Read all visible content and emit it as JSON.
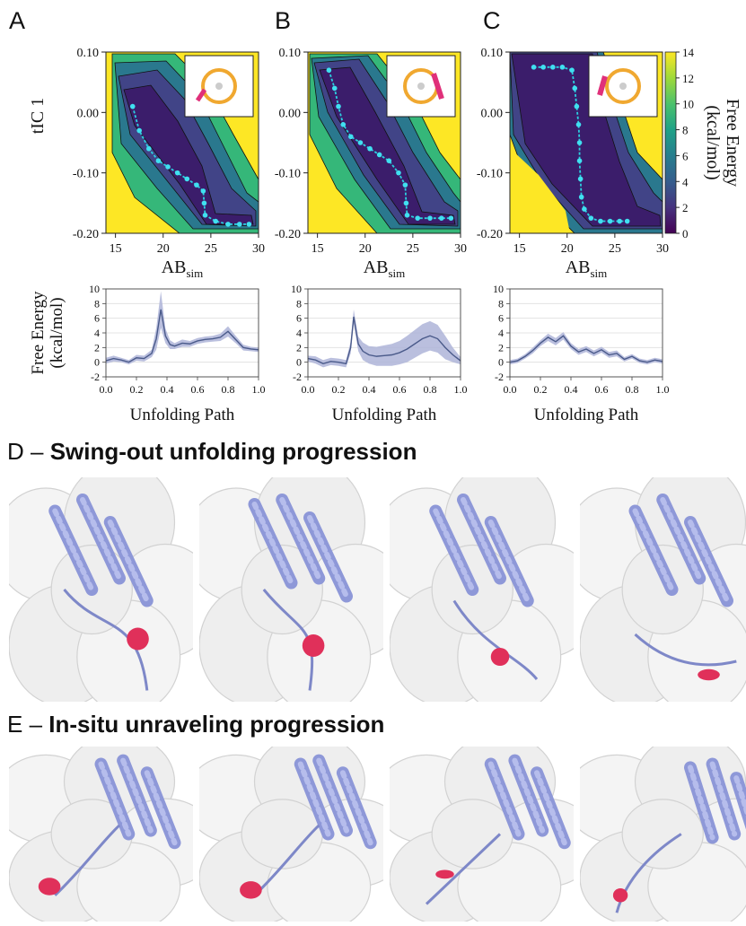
{
  "figure": {
    "panel_labels": [
      "A",
      "B",
      "C",
      "D",
      "E"
    ],
    "colorbar": {
      "label_line1": "Free Energy",
      "label_line2": "(kcal/mol)",
      "ticks": [
        "0",
        "2",
        "4",
        "6",
        "8",
        "10",
        "12",
        "14"
      ]
    },
    "section_d": {
      "title": "Swing-out unfolding progression"
    },
    "section_e": {
      "title": "In-situ unraveling progression"
    },
    "dash": "–"
  },
  "chart_data": [
    {
      "type": "heatmap",
      "panel": "A",
      "xlabel_main": "AB",
      "xlabel_sub": "sim",
      "ylabel": "tIC 1",
      "xlim": [
        14,
        30
      ],
      "ylim": [
        -0.2,
        0.1
      ],
      "xticks": [
        "15",
        "20",
        "25",
        "30"
      ],
      "yticks": [
        "0.10",
        "0.00",
        "-0.10",
        "-0.20"
      ],
      "path": [
        [
          16.8,
          0.01
        ],
        [
          17.5,
          -0.03
        ],
        [
          18.5,
          -0.06
        ],
        [
          19.5,
          -0.08
        ],
        [
          20.5,
          -0.09
        ],
        [
          21.5,
          -0.1
        ],
        [
          22.5,
          -0.11
        ],
        [
          23.5,
          -0.12
        ],
        [
          24.2,
          -0.13
        ],
        [
          24.3,
          -0.15
        ],
        [
          24.4,
          -0.17
        ],
        [
          25.5,
          -0.18
        ],
        [
          26.8,
          -0.185
        ],
        [
          28,
          -0.185
        ],
        [
          29,
          -0.185
        ]
      ],
      "zlim": [
        0,
        14
      ]
    },
    {
      "type": "heatmap",
      "panel": "B",
      "xlabel_main": "AB",
      "xlabel_sub": "sim",
      "ylabel": "",
      "xlim": [
        14,
        30
      ],
      "ylim": [
        -0.2,
        0.1
      ],
      "xticks": [
        "15",
        "20",
        "25",
        "30"
      ],
      "yticks": [
        "0.10",
        "0.00",
        "-0.10",
        "-0.20"
      ],
      "path": [
        [
          16.2,
          0.07
        ],
        [
          16.8,
          0.04
        ],
        [
          17.2,
          0.01
        ],
        [
          17.7,
          -0.02
        ],
        [
          18.5,
          -0.04
        ],
        [
          19.5,
          -0.05
        ],
        [
          20.5,
          -0.06
        ],
        [
          21.5,
          -0.07
        ],
        [
          22.5,
          -0.08
        ],
        [
          23.5,
          -0.1
        ],
        [
          24.2,
          -0.12
        ],
        [
          24.3,
          -0.15
        ],
        [
          24.4,
          -0.17
        ],
        [
          25.5,
          -0.175
        ],
        [
          26.8,
          -0.175
        ],
        [
          28,
          -0.175
        ],
        [
          29,
          -0.175
        ]
      ],
      "zlim": [
        0,
        14
      ]
    },
    {
      "type": "heatmap",
      "panel": "C",
      "xlabel_main": "AB",
      "xlabel_sub": "sim",
      "ylabel": "",
      "xlim": [
        14,
        30
      ],
      "ylim": [
        -0.2,
        0.1
      ],
      "xticks": [
        "15",
        "20",
        "25",
        "30"
      ],
      "yticks": [
        "0.10",
        "0.00",
        "-0.10",
        "-0.20"
      ],
      "path": [
        [
          16.5,
          0.075
        ],
        [
          17.5,
          0.075
        ],
        [
          18.5,
          0.075
        ],
        [
          19.5,
          0.075
        ],
        [
          20.5,
          0.07
        ],
        [
          20.8,
          0.04
        ],
        [
          21,
          0.01
        ],
        [
          21.2,
          -0.02
        ],
        [
          21.3,
          -0.05
        ],
        [
          21.3,
          -0.08
        ],
        [
          21.4,
          -0.11
        ],
        [
          21.5,
          -0.14
        ],
        [
          21.8,
          -0.16
        ],
        [
          22.5,
          -0.175
        ],
        [
          23.5,
          -0.18
        ],
        [
          24.5,
          -0.18
        ],
        [
          25.5,
          -0.18
        ],
        [
          26.3,
          -0.18
        ]
      ],
      "zlim": [
        0,
        14
      ]
    },
    {
      "type": "line",
      "panel": "A",
      "xlabel": "Unfolding Path",
      "ylabel_line1": "Free Energy",
      "ylabel_line2": "(kcal/mol)",
      "xlim": [
        0,
        1
      ],
      "ylim": [
        -2,
        10
      ],
      "xticks": [
        "0.0",
        "0.2",
        "0.4",
        "0.6",
        "0.8",
        "1.0"
      ],
      "yticks": [
        "10",
        "8",
        "6",
        "4",
        "2",
        "0",
        "-2"
      ],
      "x": [
        0,
        0.05,
        0.1,
        0.15,
        0.2,
        0.25,
        0.3,
        0.33,
        0.36,
        0.39,
        0.42,
        0.45,
        0.5,
        0.55,
        0.6,
        0.65,
        0.7,
        0.75,
        0.8,
        0.85,
        0.9,
        0.95,
        1.0
      ],
      "y": [
        0.2,
        0.5,
        0.3,
        0.0,
        0.6,
        0.5,
        1.2,
        3.2,
        7.2,
        3.6,
        2.4,
        2.2,
        2.6,
        2.5,
        2.9,
        3.1,
        3.2,
        3.4,
        4.2,
        3.1,
        2.0,
        1.8,
        1.7
      ],
      "band": [
        0.4,
        0.4,
        0.3,
        0.3,
        0.4,
        0.4,
        0.5,
        1.5,
        2.5,
        1.0,
        0.6,
        0.4,
        0.5,
        0.4,
        0.4,
        0.4,
        0.4,
        0.5,
        0.7,
        0.5,
        0.4,
        0.3,
        0.3
      ]
    },
    {
      "type": "line",
      "panel": "B",
      "xlabel": "Unfolding Path",
      "ylabel_line1": "",
      "ylabel_line2": "",
      "xlim": [
        0,
        1
      ],
      "ylim": [
        -2,
        10
      ],
      "xticks": [
        "0.0",
        "0.2",
        "0.4",
        "0.6",
        "0.8",
        "1.0"
      ],
      "yticks": [
        "10",
        "8",
        "6",
        "4",
        "2",
        "0",
        "-2"
      ],
      "x": [
        0,
        0.05,
        0.1,
        0.15,
        0.2,
        0.25,
        0.28,
        0.3,
        0.33,
        0.36,
        0.4,
        0.45,
        0.5,
        0.55,
        0.6,
        0.65,
        0.7,
        0.75,
        0.8,
        0.85,
        0.9,
        0.95,
        1.0
      ],
      "y": [
        0.5,
        0.3,
        -0.2,
        0.1,
        0.0,
        -0.2,
        2.0,
        6.2,
        2.5,
        1.5,
        1.0,
        0.8,
        0.9,
        1.0,
        1.3,
        1.8,
        2.5,
        3.2,
        3.6,
        3.2,
        2.0,
        1.0,
        0.2
      ],
      "band": [
        0.4,
        0.5,
        0.5,
        0.5,
        0.5,
        0.5,
        0.8,
        1.0,
        1.0,
        1.2,
        1.2,
        1.3,
        1.4,
        1.5,
        1.6,
        1.8,
        1.9,
        2.0,
        2.0,
        1.9,
        1.6,
        1.0,
        0.5
      ]
    },
    {
      "type": "line",
      "panel": "C",
      "xlabel": "Unfolding Path",
      "ylabel_line1": "",
      "ylabel_line2": "",
      "xlim": [
        0,
        1
      ],
      "ylim": [
        -2,
        10
      ],
      "xticks": [
        "0.0",
        "0.2",
        "0.4",
        "0.6",
        "0.8",
        "1.0"
      ],
      "yticks": [
        "10",
        "8",
        "6",
        "4",
        "2",
        "0",
        "-2"
      ],
      "x": [
        0,
        0.05,
        0.1,
        0.15,
        0.2,
        0.25,
        0.3,
        0.35,
        0.4,
        0.45,
        0.5,
        0.55,
        0.6,
        0.65,
        0.7,
        0.75,
        0.8,
        0.85,
        0.9,
        0.95,
        1.0
      ],
      "y": [
        0.0,
        0.2,
        0.8,
        1.6,
        2.6,
        3.4,
        2.8,
        3.6,
        2.2,
        1.4,
        1.8,
        1.2,
        1.7,
        1.0,
        1.2,
        0.4,
        0.8,
        0.2,
        0.0,
        0.3,
        0.1
      ],
      "band": [
        0.3,
        0.3,
        0.3,
        0.4,
        0.4,
        0.5,
        0.5,
        0.5,
        0.4,
        0.4,
        0.4,
        0.4,
        0.4,
        0.4,
        0.4,
        0.3,
        0.3,
        0.3,
        0.3,
        0.3,
        0.3
      ]
    }
  ]
}
